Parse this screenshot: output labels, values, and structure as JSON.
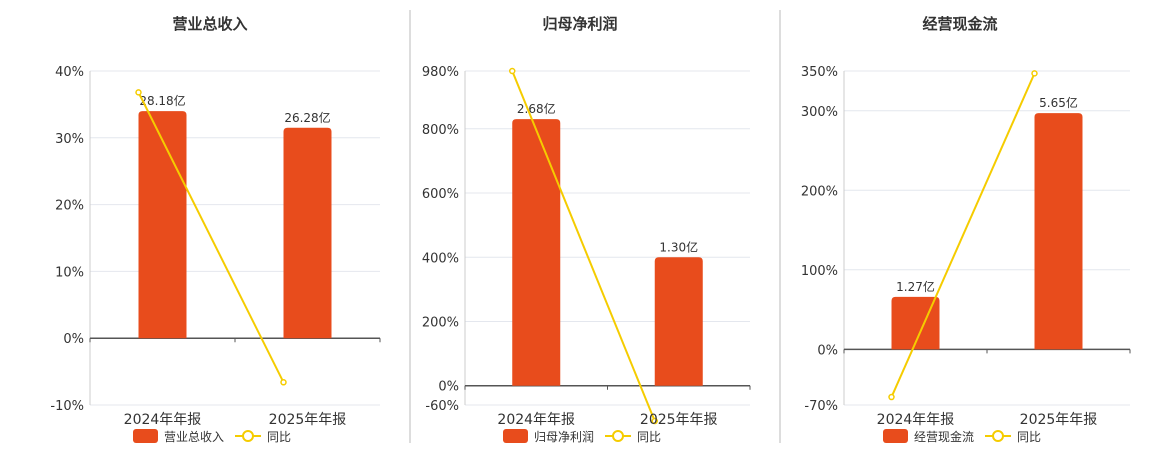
{
  "colors": {
    "bar": "#E84C1C",
    "line": "#F5CC00",
    "axis": "#555555",
    "grid": "#E4E7EE",
    "text": "#333333",
    "divider": "#BBBBBB"
  },
  "chart_data": [
    {
      "type": "bar",
      "title": "营业总收入",
      "categories": [
        "2024年年报",
        "2025年年报"
      ],
      "series": [
        {
          "name": "营业总收入",
          "kind": "bar",
          "values": [
            34,
            31.5
          ],
          "labels": [
            "28.18亿",
            "26.28亿"
          ]
        },
        {
          "name": "同比",
          "kind": "line",
          "values": [
            36.8,
            -6.6
          ]
        }
      ],
      "ylim": [
        -10,
        40
      ],
      "yticks": [
        -10,
        0,
        10,
        20,
        30,
        40
      ],
      "ytick_labels": [
        "-10%",
        "0%",
        "10%",
        "20%",
        "30%",
        "40%"
      ],
      "grid": true,
      "legend": "bottom"
    },
    {
      "type": "bar",
      "title": "归母净利润",
      "categories": [
        "2024年年报",
        "2025年年报"
      ],
      "series": [
        {
          "name": "归母净利润",
          "kind": "bar",
          "values": [
            830,
            400
          ],
          "labels": [
            "2.68亿",
            "1.30亿"
          ]
        },
        {
          "name": "同比",
          "kind": "line",
          "values": [
            980,
            -110
          ]
        }
      ],
      "ylim": [
        -60,
        980
      ],
      "yticks": [
        -60,
        0,
        200,
        400,
        600,
        800,
        980
      ],
      "ytick_labels": [
        "-60%",
        "0%",
        "200%",
        "400%",
        "600%",
        "800%",
        "980%"
      ],
      "grid": true,
      "legend": "bottom"
    },
    {
      "type": "bar",
      "title": "经营现金流",
      "categories": [
        "2024年年报",
        "2025年年报"
      ],
      "series": [
        {
          "name": "经营现金流",
          "kind": "bar",
          "values": [
            66,
            297
          ],
          "labels": [
            "1.27亿",
            "5.65亿"
          ]
        },
        {
          "name": "同比",
          "kind": "line",
          "values": [
            -60,
            347
          ]
        }
      ],
      "ylim": [
        -70,
        350
      ],
      "yticks": [
        -70,
        0,
        100,
        200,
        300,
        350
      ],
      "ytick_labels": [
        "-70%",
        "0%",
        "100%",
        "200%",
        "300%",
        "350%"
      ],
      "grid": true,
      "legend": "bottom"
    }
  ]
}
